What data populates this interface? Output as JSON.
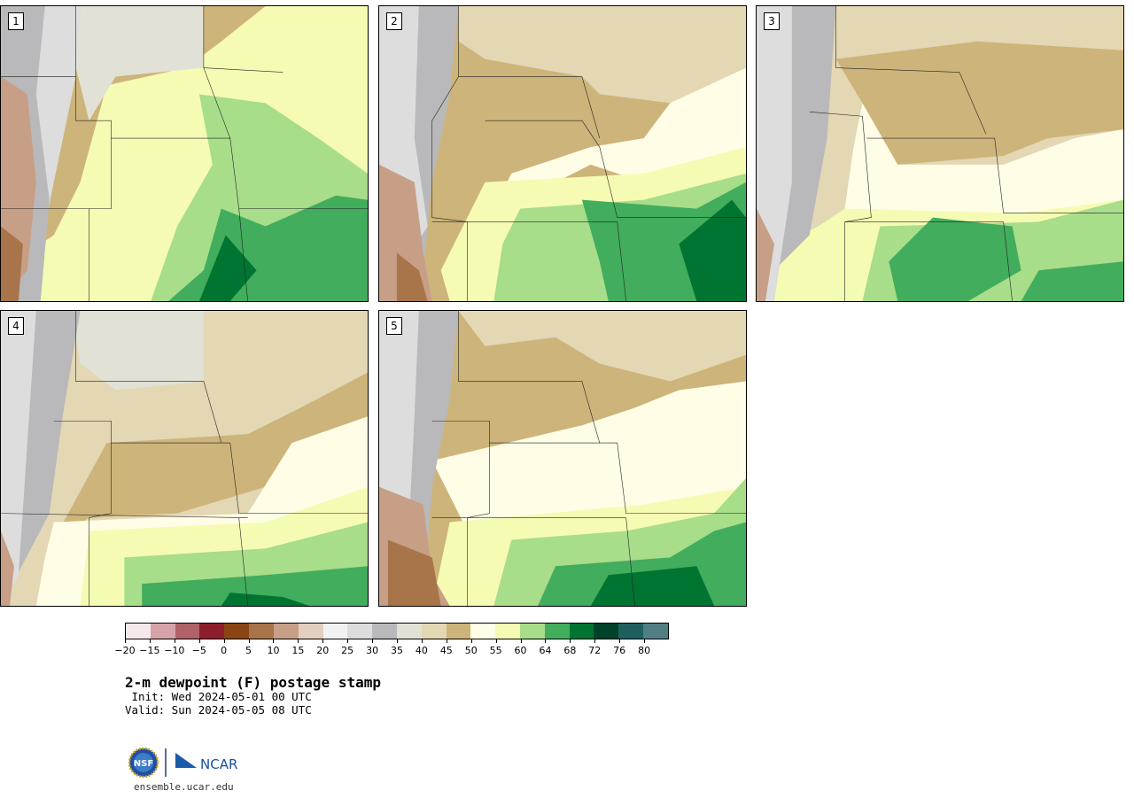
{
  "panels": [
    {
      "label": "1",
      "scheme": "dry_west_moist_east"
    },
    {
      "label": "2",
      "scheme": "moist_south"
    },
    {
      "label": "3",
      "scheme": "moist_south"
    },
    {
      "label": "4",
      "scheme": "moist_southeast"
    },
    {
      "label": "5",
      "scheme": "moist_southeast"
    }
  ],
  "colorbar": {
    "colors": [
      "#f5e9ea",
      "#d6a3a9",
      "#b0616a",
      "#8c1f2b",
      "#8a4512",
      "#a87449",
      "#c79f86",
      "#e2cfbf",
      "#f2f2f2",
      "#dddddd",
      "#b9b9bb",
      "#e1e1d6",
      "#e3d7b4",
      "#cdb47a",
      "#fffde6",
      "#f6fbb4",
      "#a8dd8a",
      "#41ad5d",
      "#007532",
      "#00432a",
      "#1f5f5f",
      "#507e82"
    ],
    "ticks": [
      "−20",
      "−15",
      "−10",
      "−5",
      "0",
      "5",
      "10",
      "15",
      "20",
      "25",
      "30",
      "35",
      "40",
      "45",
      "50",
      "55",
      "60",
      "64",
      "68",
      "72",
      "76",
      "80"
    ]
  },
  "title": "2-m dewpoint (F) postage stamp",
  "init": " Init: Wed 2024-05-01 00 UTC",
  "valid": "Valid: Sun 2024-05-05 08 UTC",
  "logo": {
    "nsf": "NSF",
    "ncar": "NCAR"
  },
  "site": "ensemble.ucar.edu"
}
